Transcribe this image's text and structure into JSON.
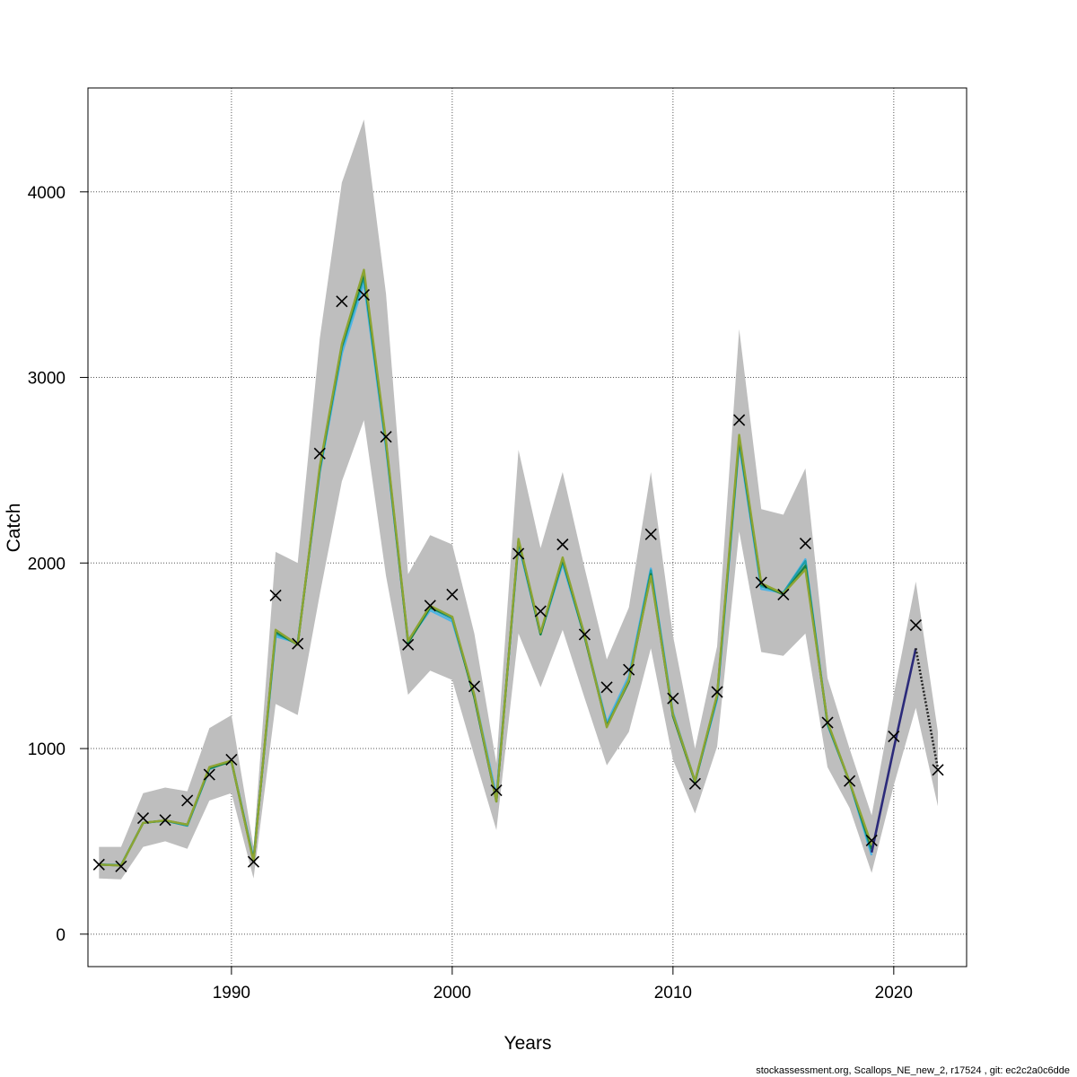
{
  "chart_data": {
    "type": "line",
    "title": "",
    "xlabel": "Years",
    "ylabel": "Catch",
    "xlim": [
      1983.5,
      2023.3
    ],
    "ylim": [
      -175,
      4560
    ],
    "x_ticks": [
      1990,
      2000,
      2010,
      2020
    ],
    "y_ticks": [
      0,
      1000,
      2000,
      3000,
      4000
    ],
    "grid": true,
    "legend": "none",
    "years": [
      1984,
      1985,
      1986,
      1987,
      1988,
      1989,
      1990,
      1991,
      1992,
      1993,
      1994,
      1995,
      1996,
      1997,
      1998,
      1999,
      2000,
      2001,
      2002,
      2003,
      2004,
      2005,
      2006,
      2007,
      2008,
      2009,
      2010,
      2011,
      2012,
      2013,
      2014,
      2015,
      2016,
      2017,
      2018,
      2019,
      2020,
      2021,
      2022
    ],
    "observed": [
      375,
      365,
      625,
      615,
      720,
      860,
      940,
      390,
      1825,
      1565,
      2590,
      3410,
      3445,
      2680,
      1560,
      1770,
      1830,
      1335,
      775,
      2050,
      1740,
      2100,
      1615,
      1330,
      1425,
      2155,
      1270,
      810,
      1305,
      2770,
      1895,
      1830,
      2105,
      1140,
      825,
      505,
      1065,
      1665,
      885
    ],
    "band": {
      "color": "#bebebe",
      "lower": [
        300,
        295,
        470,
        500,
        460,
        720,
        760,
        300,
        1240,
        1180,
        1830,
        2440,
        2770,
        1930,
        1290,
        1420,
        1370,
        960,
        560,
        1620,
        1330,
        1640,
        1270,
        910,
        1090,
        1540,
        940,
        650,
        1010,
        2170,
        1520,
        1500,
        1620,
        900,
        680,
        330,
        800,
        1220,
        690
      ],
      "upper": [
        470,
        470,
        760,
        790,
        770,
        1110,
        1180,
        470,
        2060,
        2000,
        3210,
        4050,
        4390,
        3450,
        1940,
        2150,
        2100,
        1620,
        920,
        2610,
        2080,
        2490,
        1970,
        1480,
        1760,
        2490,
        1610,
        1000,
        1550,
        3260,
        2290,
        2260,
        2510,
        1380,
        1000,
        640,
        1290,
        1900,
        1090
      ]
    },
    "series": [
      {
        "color": "#4fb4e4",
        "values": [
          375,
          372,
          600,
          612,
          585,
          890,
          935,
          405,
          1605,
          1570,
          2490,
          3130,
          3510,
          2620,
          1580,
          1745,
          1685,
          1290,
          745,
          2100,
          1615,
          1995,
          1600,
          1140,
          1390,
          1970,
          1195,
          820,
          1265,
          2640,
          1860,
          1840,
          2020,
          1140,
          820,
          425,
          1010,
          1520,
          880
        ]
      },
      {
        "color": "#1f9ea8",
        "values": [
          375,
          372,
          600,
          612,
          585,
          890,
          935,
          400,
          1620,
          1565,
          2500,
          3160,
          3540,
          2640,
          1580,
          1760,
          1700,
          1280,
          720,
          2120,
          1620,
          2010,
          1610,
          1125,
          1370,
          1960,
          1185,
          825,
          1275,
          2660,
          1875,
          1840,
          2010,
          1130,
          820,
          445,
          1000,
          1530,
          885
        ]
      },
      {
        "color": "#138046",
        "values": [
          375,
          370,
          600,
          612,
          590,
          895,
          930,
          395,
          1630,
          1560,
          2510,
          3170,
          3560,
          2650,
          1570,
          1760,
          1710,
          1275,
          715,
          2120,
          1615,
          2020,
          1600,
          1120,
          1360,
          1940,
          1175,
          820,
          1285,
          2670,
          1885,
          1830,
          1985,
          1140,
          820,
          460,
          1000,
          1540,
          890
        ]
      },
      {
        "color": "#8da432",
        "values": [
          375,
          370,
          600,
          613,
          590,
          900,
          935,
          390,
          1640,
          1560,
          2520,
          3180,
          3580,
          2660,
          1580,
          1770,
          1710,
          1290,
          715,
          2130,
          1625,
          2030,
          1610,
          1115,
          1370,
          1930,
          1185,
          825,
          1290,
          2690,
          1890,
          1835,
          1965,
          1145,
          820,
          480,
          1000,
          1540,
          890
        ]
      }
    ],
    "projection": {
      "years": [
        2019,
        2020,
        2021,
        2022
      ],
      "values": [
        440,
        1000,
        1540,
        890
      ],
      "color": "#2b2a7a",
      "dotted_color": "#222222"
    }
  },
  "footer": "stockassessment.org, Scallops_NE_new_2, r17524 , git: ec2c2a0c6dde"
}
